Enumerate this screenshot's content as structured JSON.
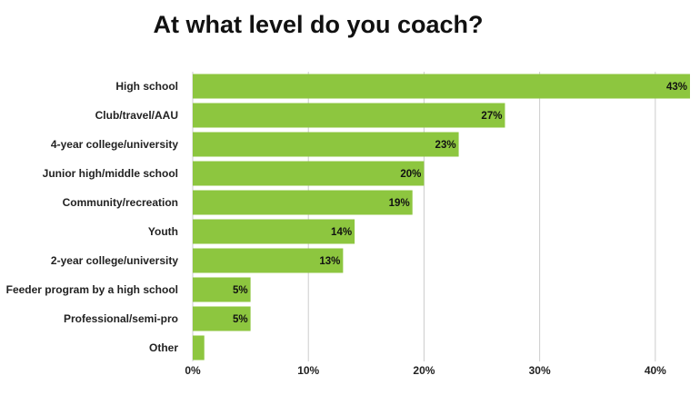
{
  "chart_data": {
    "type": "bar",
    "orientation": "horizontal",
    "title": "At what level do you coach?",
    "categories": [
      "High school",
      "Club/travel/AAU",
      "4-year college/university",
      "Junior high/middle school",
      "Community/recreation",
      "Youth",
      "2-year college/university",
      "Feeder program by a high school",
      "Professional/semi-pro",
      "Other"
    ],
    "values": [
      43,
      27,
      23,
      20,
      19,
      14,
      13,
      5,
      5,
      1
    ],
    "value_labels": [
      "43%",
      "27%",
      "23%",
      "20%",
      "19%",
      "14%",
      "13%",
      "5%",
      "5%",
      ""
    ],
    "xlim": [
      0,
      43
    ],
    "xticks": [
      0,
      10,
      20,
      30,
      40
    ],
    "xtick_labels": [
      "0%",
      "10%",
      "20%",
      "30%",
      "40%"
    ],
    "xlabel": "",
    "ylabel": "",
    "grid": true,
    "legend": "none",
    "bar_color": "#8dc63f",
    "grid_color": "#cccccc"
  }
}
